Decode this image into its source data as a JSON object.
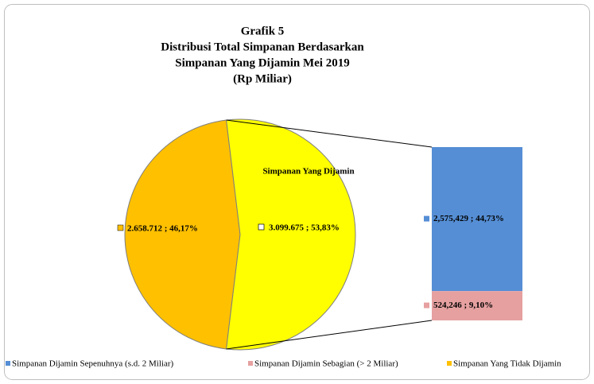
{
  "chart_data": {
    "type": "pie_of_bar",
    "title": [
      "Grafik 5",
      "Distribusi Total Simpanan Berdasarkan",
      "Simpanan Yang Dijamin Mei 2019",
      "(Rp Miliar)"
    ],
    "pie": [
      {
        "name": "Simpanan Yang Tidak Dijamin",
        "value": 2658712,
        "percent": 46.17,
        "value_label": "2.658.712 ; 46,17%",
        "color": "#FFC000"
      },
      {
        "name": "Simpanan Yang Dijamin",
        "value": 3099675,
        "percent": 53.83,
        "value_label": "3.099.675 ; 53,83%",
        "color": "#FFFF00"
      }
    ],
    "bar": [
      {
        "name": "Simpanan Dijamin Sepenuhnya (s.d. 2 Miliar)",
        "value": 2575429,
        "percent": 44.73,
        "value_label": "2,575,429 ; 44,73%",
        "color": "#558ED5"
      },
      {
        "name": "Simpanan Dijamin Sebagian (> 2 Miliar)",
        "value": 524246,
        "percent": 9.1,
        "value_label": "524,246 ; 9,10%",
        "color": "#E6A0A0"
      }
    ]
  }
}
